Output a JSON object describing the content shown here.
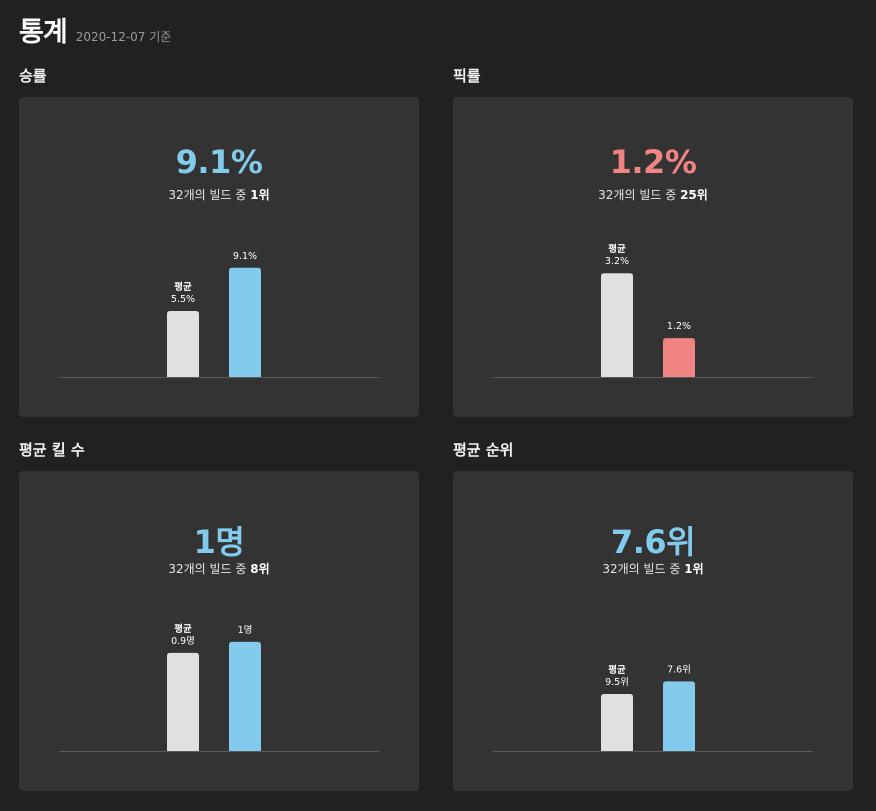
{
  "header": {
    "title": "통계",
    "subtitle": "2020-12-07 기준"
  },
  "chart_data": [
    {
      "type": "bar",
      "section_label": "승률",
      "headline": "9.1%",
      "rank_prefix": "32개의 빌드 중 ",
      "rank_value": "1위",
      "categories": [
        "평균",
        ""
      ],
      "values": [
        5.5,
        9.1
      ],
      "value_labels": [
        "5.5%",
        "9.1%"
      ],
      "ylim": [
        0,
        10
      ],
      "accent": "#82cbec"
    },
    {
      "type": "bar",
      "section_label": "픽률",
      "headline": "1.2%",
      "rank_prefix": "32개의 빌드 중 ",
      "rank_value": "25위",
      "categories": [
        "평균",
        ""
      ],
      "values": [
        3.2,
        1.2
      ],
      "value_labels": [
        "3.2%",
        "1.2%"
      ],
      "ylim": [
        0,
        3.7
      ],
      "accent": "#ef8482"
    },
    {
      "type": "bar",
      "section_label": "평균 킬 수",
      "headline": "1명",
      "rank_prefix": "32개의 빌드 중 ",
      "rank_value": "8위",
      "categories": [
        "평균",
        ""
      ],
      "values": [
        0.9,
        1
      ],
      "value_labels": [
        "0.9명",
        "1명"
      ],
      "ylim": [
        0,
        1.1
      ],
      "accent": "#82cbec"
    },
    {
      "type": "bar",
      "section_label": "평균 순위",
      "headline": "7.6위",
      "rank_prefix": "32개의 빌드 중 ",
      "rank_value": "1위",
      "categories": [
        "평균",
        ""
      ],
      "values": [
        9.5,
        7.6
      ],
      "value_labels": [
        "9.5위",
        "7.6위"
      ],
      "ylim": [
        18.1,
        0
      ],
      "accent": "#82cbec"
    }
  ],
  "colors": {
    "average_bar": "#e0e0e0",
    "baseline": "#5a5a5a"
  }
}
